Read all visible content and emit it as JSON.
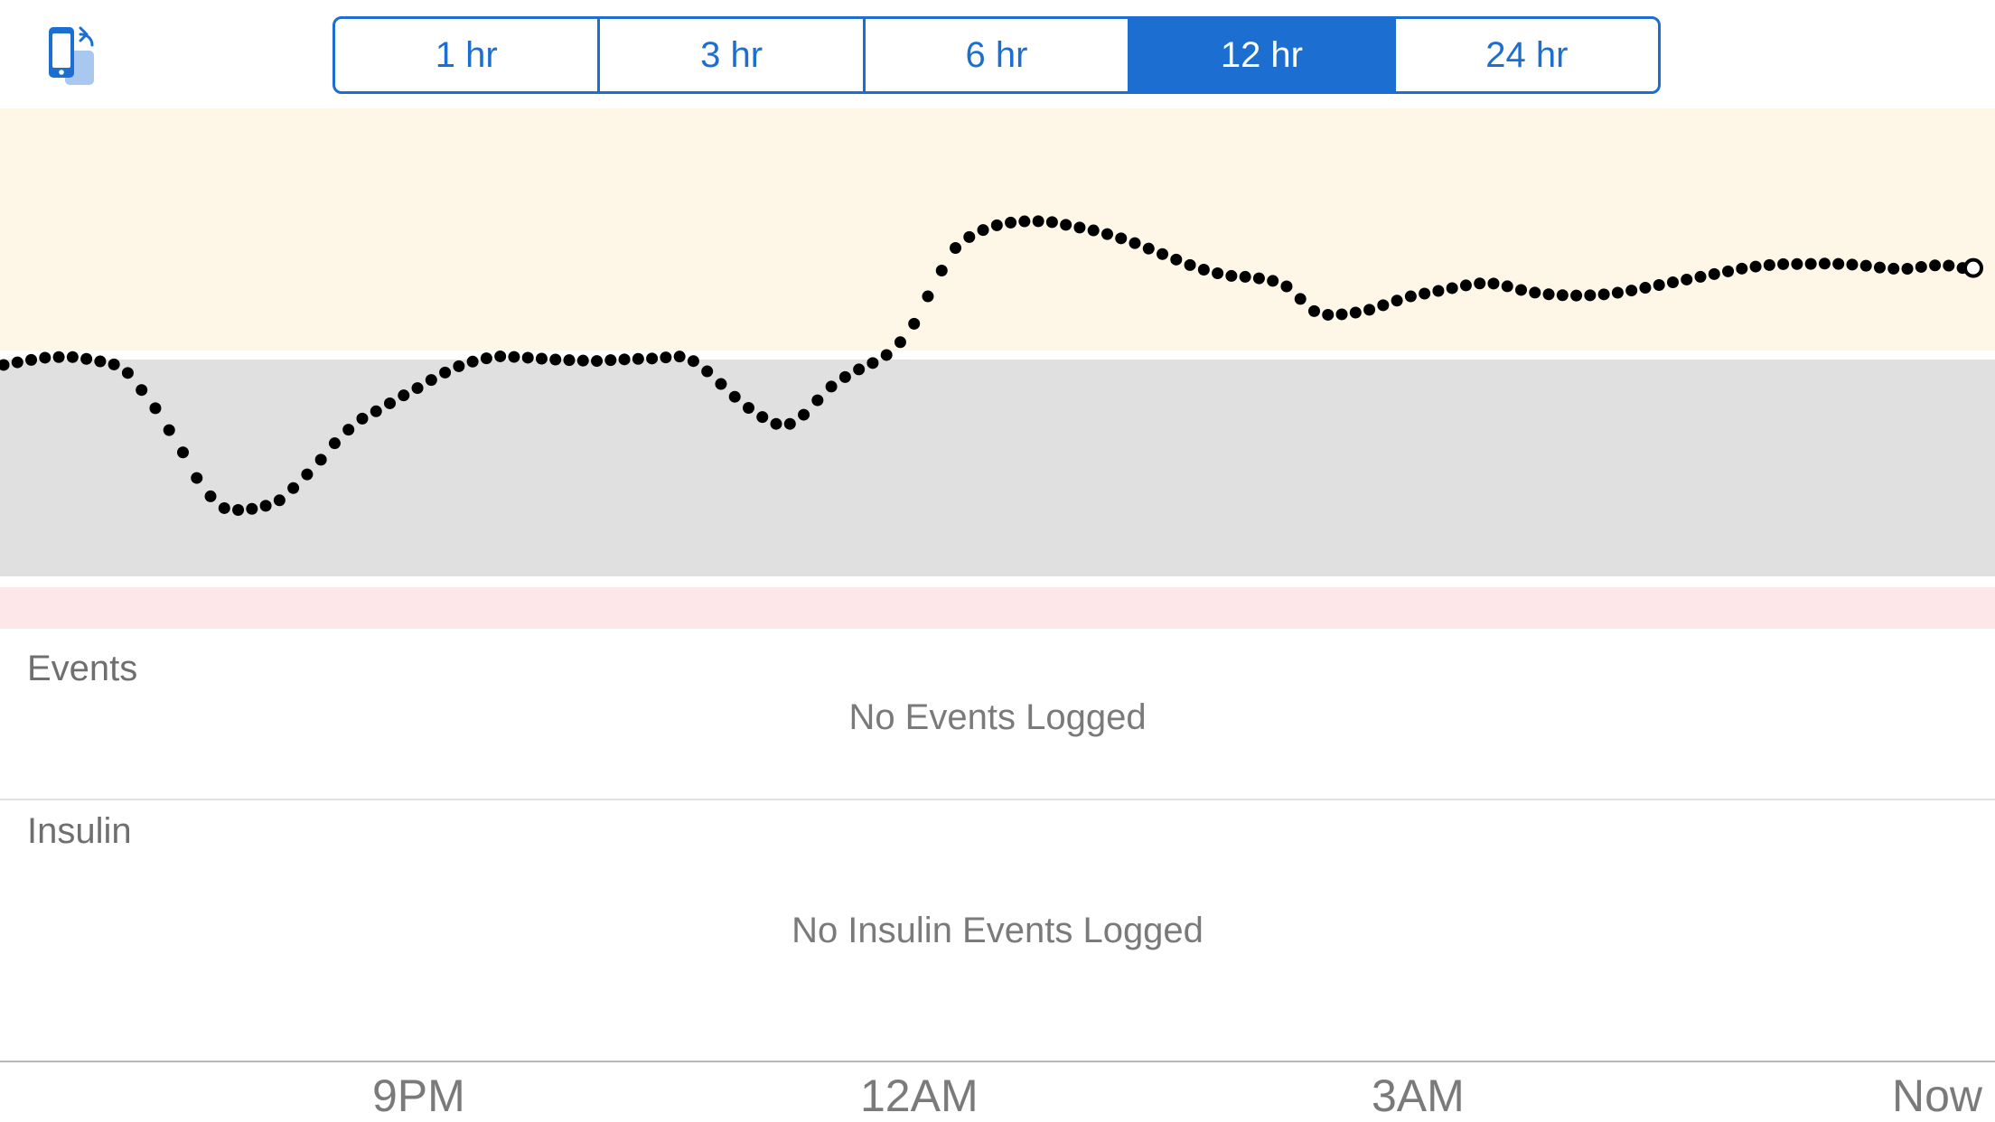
{
  "toolbar": {
    "rotate_icon": "rotate-device-icon",
    "ranges": [
      {
        "label": "1 hr",
        "selected": false
      },
      {
        "label": "3 hr",
        "selected": false
      },
      {
        "label": "6 hr",
        "selected": false
      },
      {
        "label": "12 hr",
        "selected": true
      },
      {
        "label": "24 hr",
        "selected": false
      }
    ]
  },
  "colors": {
    "accent": "#1c6fd0",
    "high_zone": "#fef7e8",
    "target_zone": "#e0e0e0",
    "low_zone": "#fde7e9",
    "dots": "#000000"
  },
  "chart_data": {
    "type": "scatter",
    "x_labels": [
      "9PM",
      "12AM",
      "3AM",
      "Now"
    ],
    "series_points": [
      [
        0,
        0.745
      ],
      [
        0.012,
        0.762
      ],
      [
        0.023,
        0.775
      ],
      [
        0.035,
        0.775
      ],
      [
        0.045,
        0.765
      ],
      [
        0.06,
        0.74
      ],
      [
        0.075,
        0.6
      ],
      [
        0.09,
        0.42
      ],
      [
        0.1,
        0.28
      ],
      [
        0.11,
        0.2
      ],
      [
        0.12,
        0.19
      ],
      [
        0.13,
        0.2
      ],
      [
        0.14,
        0.23
      ],
      [
        0.15,
        0.3
      ],
      [
        0.16,
        0.38
      ],
      [
        0.17,
        0.47
      ],
      [
        0.18,
        0.535
      ],
      [
        0.19,
        0.575
      ],
      [
        0.2,
        0.62
      ],
      [
        0.21,
        0.66
      ],
      [
        0.22,
        0.705
      ],
      [
        0.23,
        0.74
      ],
      [
        0.24,
        0.765
      ],
      [
        0.25,
        0.778
      ],
      [
        0.26,
        0.775
      ],
      [
        0.27,
        0.77
      ],
      [
        0.28,
        0.765
      ],
      [
        0.29,
        0.762
      ],
      [
        0.3,
        0.76
      ],
      [
        0.31,
        0.765
      ],
      [
        0.32,
        0.768
      ],
      [
        0.33,
        0.77
      ],
      [
        0.34,
        0.778
      ],
      [
        0.345,
        0.775
      ],
      [
        0.352,
        0.745
      ],
      [
        0.36,
        0.69
      ],
      [
        0.37,
        0.62
      ],
      [
        0.38,
        0.56
      ],
      [
        0.39,
        0.52
      ],
      [
        0.4,
        0.52
      ],
      [
        0.41,
        0.6
      ],
      [
        0.42,
        0.675
      ],
      [
        0.43,
        0.72
      ],
      [
        0.44,
        0.755
      ],
      [
        0.45,
        0.8
      ],
      [
        0.46,
        0.9
      ],
      [
        0.47,
        1.05
      ],
      [
        0.48,
        1.185
      ],
      [
        0.49,
        1.245
      ],
      [
        0.5,
        1.275
      ],
      [
        0.51,
        1.29
      ],
      [
        0.52,
        1.295
      ],
      [
        0.53,
        1.29
      ],
      [
        0.54,
        1.275
      ],
      [
        0.55,
        1.26
      ],
      [
        0.56,
        1.24
      ],
      [
        0.57,
        1.215
      ],
      [
        0.58,
        1.185
      ],
      [
        0.59,
        1.155
      ],
      [
        0.6,
        1.125
      ],
      [
        0.61,
        1.1
      ],
      [
        0.62,
        1.085
      ],
      [
        0.63,
        1.08
      ],
      [
        0.64,
        1.07
      ],
      [
        0.65,
        1.04
      ],
      [
        0.655,
        1
      ],
      [
        0.66,
        0.955
      ],
      [
        0.67,
        0.935
      ],
      [
        0.68,
        0.94
      ],
      [
        0.69,
        0.955
      ],
      [
        0.7,
        0.98
      ],
      [
        0.71,
        1.005
      ],
      [
        0.72,
        1.02
      ],
      [
        0.73,
        1.035
      ],
      [
        0.74,
        1.05
      ],
      [
        0.75,
        1.06
      ],
      [
        0.76,
        1.045
      ],
      [
        0.77,
        1.025
      ],
      [
        0.78,
        1.015
      ],
      [
        0.79,
        1.01
      ],
      [
        0.8,
        1.01
      ],
      [
        0.81,
        1.015
      ],
      [
        0.82,
        1.025
      ],
      [
        0.83,
        1.04
      ],
      [
        0.84,
        1.055
      ],
      [
        0.85,
        1.07
      ],
      [
        0.86,
        1.085
      ],
      [
        0.87,
        1.1
      ],
      [
        0.88,
        1.115
      ],
      [
        0.89,
        1.125
      ],
      [
        0.9,
        1.13
      ],
      [
        0.91,
        1.13
      ],
      [
        0.92,
        1.132
      ],
      [
        0.93,
        1.13
      ],
      [
        0.94,
        1.125
      ],
      [
        0.95,
        1.115
      ],
      [
        0.96,
        1.11
      ],
      [
        0.97,
        1.12
      ],
      [
        0.98,
        1.128
      ],
      [
        0.99,
        1.115
      ]
    ]
  },
  "events": {
    "title": "Events",
    "empty": "No Events Logged"
  },
  "insulin": {
    "title": "Insulin",
    "empty": "No Insulin Events Logged"
  }
}
